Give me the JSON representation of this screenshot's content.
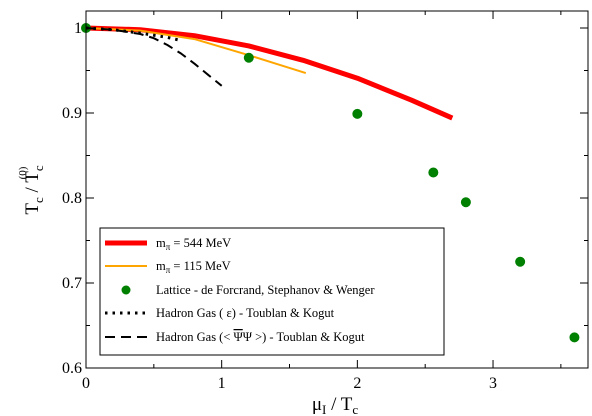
{
  "chart_data": {
    "type": "line",
    "title": "",
    "xlabel": {
      "main": "μ",
      "sub": "I",
      "rest": " / T",
      "rest_sub": "c"
    },
    "ylabel": {
      "main": "T",
      "sub": "c",
      "mid": " / T",
      "mid_sub": "c",
      "mid_sup": "(0)"
    },
    "xlim": [
      0,
      3.7
    ],
    "ylim": [
      0.6,
      1.02
    ],
    "x_ticks": [
      0,
      1,
      2,
      3
    ],
    "x_tick_labels": [
      "0",
      "1",
      "2",
      "3"
    ],
    "y_ticks": [
      0.6,
      0.7,
      0.8,
      0.9,
      1.0
    ],
    "y_tick_labels": [
      "0.6",
      "0.7",
      "0.8",
      "0.9",
      "1"
    ],
    "grid": false,
    "legend_position": "bottom-left",
    "series": [
      {
        "name": "m_π = 544 MeV",
        "legend": {
          "pre": "m",
          "sub": "π",
          "post": " = 544 MeV"
        },
        "style": "thick-line",
        "color": "#ff0000",
        "x": [
          0,
          0.4,
          0.8,
          1.2,
          1.6,
          2.0,
          2.4,
          2.7
        ],
        "y": [
          1.0,
          0.998,
          0.991,
          0.979,
          0.962,
          0.941,
          0.915,
          0.894
        ]
      },
      {
        "name": "m_π = 115 MeV",
        "legend": {
          "pre": "m",
          "sub": "π",
          "post": " = 115 MeV"
        },
        "style": "line",
        "color": "#ffa500",
        "x": [
          0,
          0.4,
          0.8,
          1.2,
          1.4,
          1.62
        ],
        "y": [
          1.0,
          0.997,
          0.987,
          0.968,
          0.958,
          0.947
        ]
      },
      {
        "name": "Lattice - de Forcrand, Stephanov & Wenger",
        "legend": {
          "pre": "Lattice - de Forcrand, Stephanov & Wenger",
          "sub": "",
          "post": ""
        },
        "style": "scatter",
        "color": "#008000",
        "x": [
          0,
          1.2,
          2.0,
          2.56,
          2.8,
          3.2,
          3.6
        ],
        "y": [
          1.0,
          0.965,
          0.899,
          0.83,
          0.795,
          0.725,
          0.636
        ]
      },
      {
        "name": "Hadron Gas ( ε) - Toublan & Kogut",
        "legend": {
          "pre": "Hadron Gas ( ε) - Toublan & Kogut",
          "sub": "",
          "post": ""
        },
        "style": "dotted",
        "color": "#000000",
        "x": [
          0,
          0.2,
          0.4,
          0.6,
          0.68
        ],
        "y": [
          1.0,
          0.998,
          0.994,
          0.989,
          0.986
        ]
      },
      {
        "name": "Hadron Gas (< ΨΨ >) - Toublan & Kogut",
        "legend": {
          "pre": "Hadron Gas (< ",
          "over": "Ψ",
          "mid": "Ψ >) - Toublan & Kogut",
          "sub": "",
          "post": ""
        },
        "style": "dashed",
        "color": "#000000",
        "x": [
          0,
          0.2,
          0.4,
          0.5,
          0.6,
          0.7,
          0.8,
          0.9,
          1.0
        ],
        "y": [
          1.0,
          0.998,
          0.993,
          0.988,
          0.98,
          0.97,
          0.958,
          0.945,
          0.932
        ]
      }
    ]
  }
}
